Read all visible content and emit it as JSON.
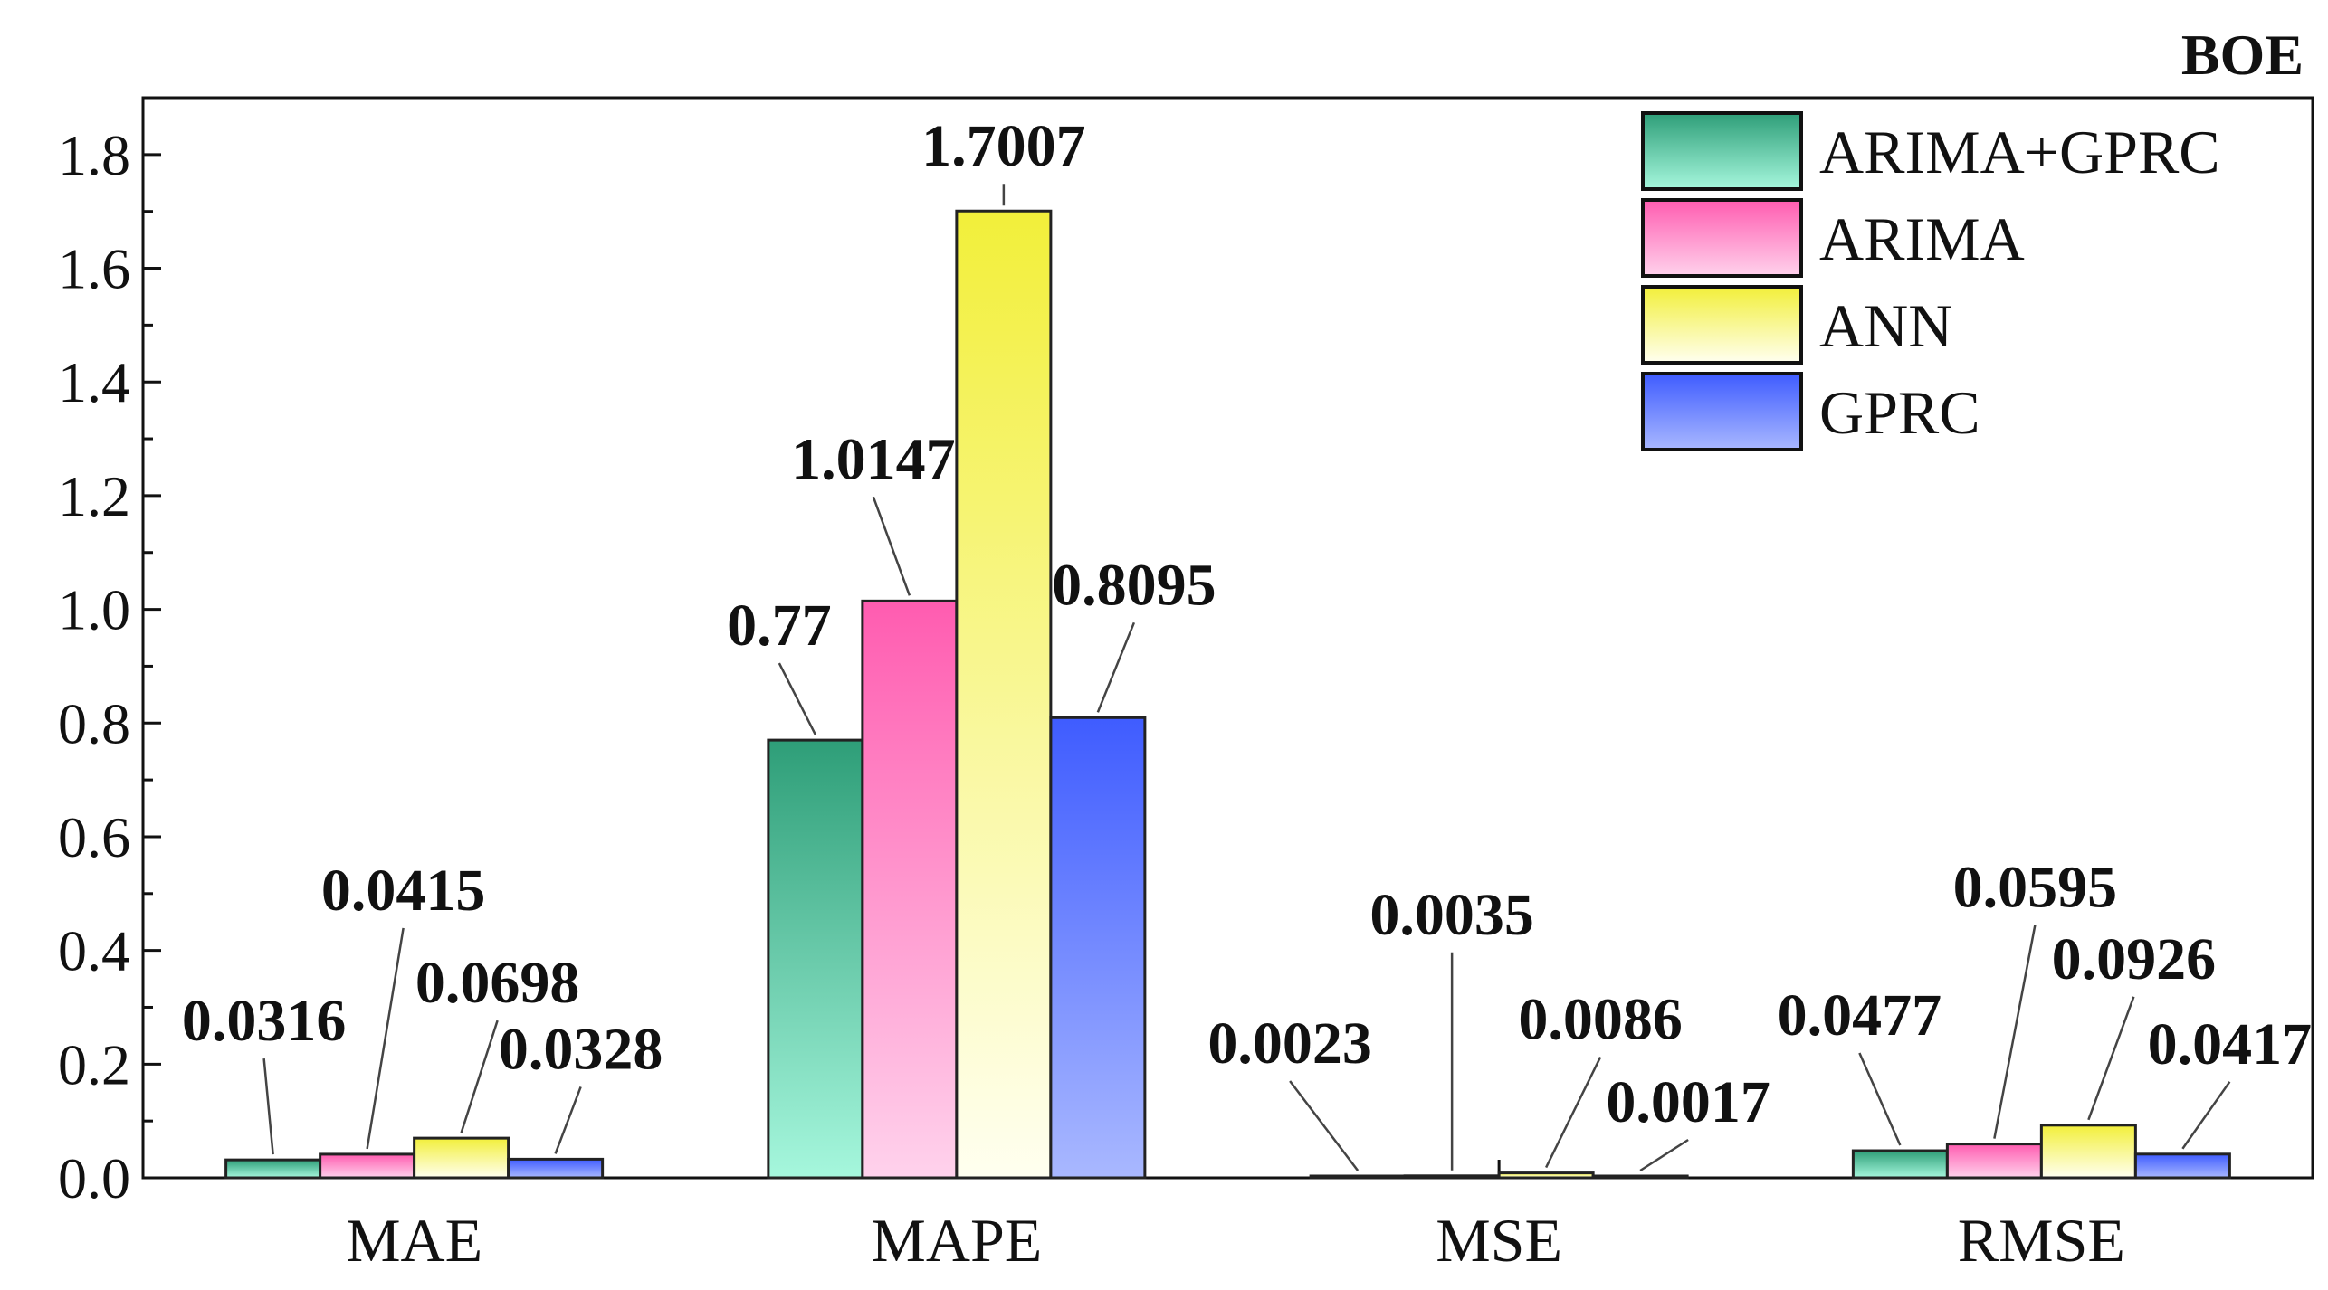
{
  "chart_data": {
    "type": "bar",
    "title": "BOE",
    "xlabel": "",
    "ylabel": "",
    "categories": [
      "MAE",
      "MAPE",
      "MSE",
      "RMSE"
    ],
    "ylim": [
      0,
      1.9
    ],
    "yticks": [
      "0.0",
      "0.2",
      "0.4",
      "0.6",
      "0.8",
      "1.0",
      "1.2",
      "1.4",
      "1.6",
      "1.8"
    ],
    "legend_position": "top-right",
    "series": [
      {
        "name": "ARIMA+GPRC",
        "values": [
          0.0316,
          0.77,
          0.0023,
          0.0477
        ],
        "labels": [
          "0.0316",
          "0.77",
          "0.0023",
          "0.0477"
        ],
        "color_top": "#2e9e78",
        "color_bottom": "#a6f7dd"
      },
      {
        "name": "ARIMA",
        "values": [
          0.0415,
          1.0147,
          0.0035,
          0.0595
        ],
        "labels": [
          "0.0415",
          "1.0147",
          "0.0035",
          "0.0595"
        ],
        "color_top": "#ff5cb0",
        "color_bottom": "#ffd2ec"
      },
      {
        "name": "ANN",
        "values": [
          0.0698,
          1.7007,
          0.0086,
          0.0926
        ],
        "labels": [
          "0.0698",
          "1.7007",
          "0.0086",
          "0.0926"
        ],
        "color_top": "#f2ef3a",
        "color_bottom": "#fffff0"
      },
      {
        "name": "GPRC",
        "values": [
          0.0328,
          0.8095,
          0.0017,
          0.0417
        ],
        "labels": [
          "0.0328",
          "0.8095",
          "0.0017",
          "0.0417"
        ],
        "color_top": "#3f5cff",
        "color_bottom": "#a9b8ff"
      }
    ]
  }
}
